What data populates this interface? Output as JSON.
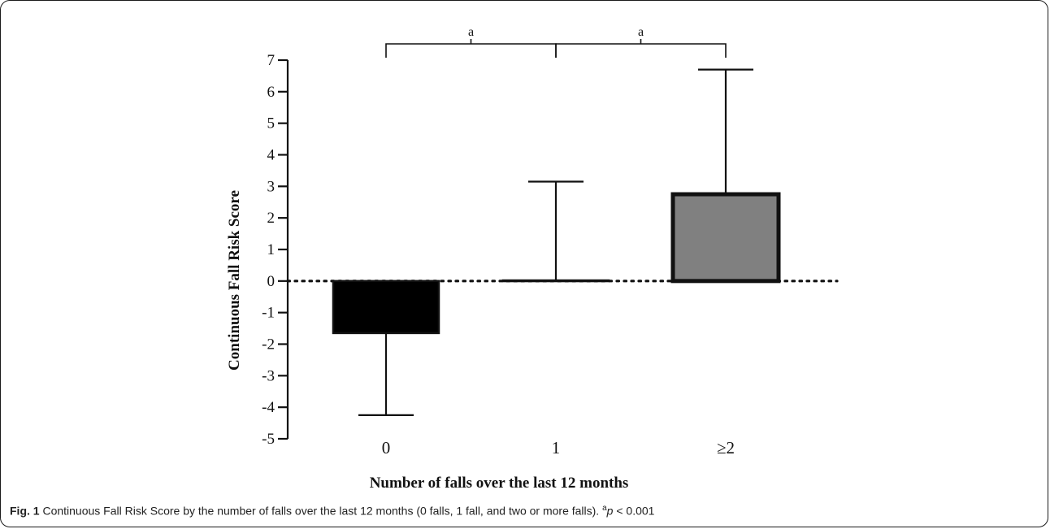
{
  "chart_data": {
    "type": "bar",
    "categories": [
      "0",
      "1",
      "≥2"
    ],
    "values": [
      -1.65,
      0.02,
      2.75
    ],
    "error_upper": [
      0,
      3.15,
      6.7
    ],
    "error_lower": [
      -4.25,
      0,
      0
    ],
    "bar_colors": [
      "#000000",
      "#ffffff",
      "#808080"
    ],
    "ylim": [
      -5,
      7
    ],
    "yticks": [
      "-5",
      "-4",
      "-3",
      "-2",
      "-1",
      "0",
      "1",
      "2",
      "3",
      "4",
      "5",
      "6",
      "7"
    ],
    "ylabel": "Continuous Fall Risk Score",
    "xlabel": "Number of falls over the last 12 months",
    "reference_line": 0,
    "significance": [
      {
        "from": 0,
        "to": 1,
        "label": "a"
      },
      {
        "from": 1,
        "to": 2,
        "label": "a"
      }
    ]
  },
  "caption": {
    "label": "Fig. 1",
    "text": " Continuous Fall Risk Score by the number of falls over the last 12 months (0 falls, 1 fall, and two or more falls). ",
    "sup": "a",
    "p_symbol": "p",
    "p_rest": " < 0.001"
  }
}
